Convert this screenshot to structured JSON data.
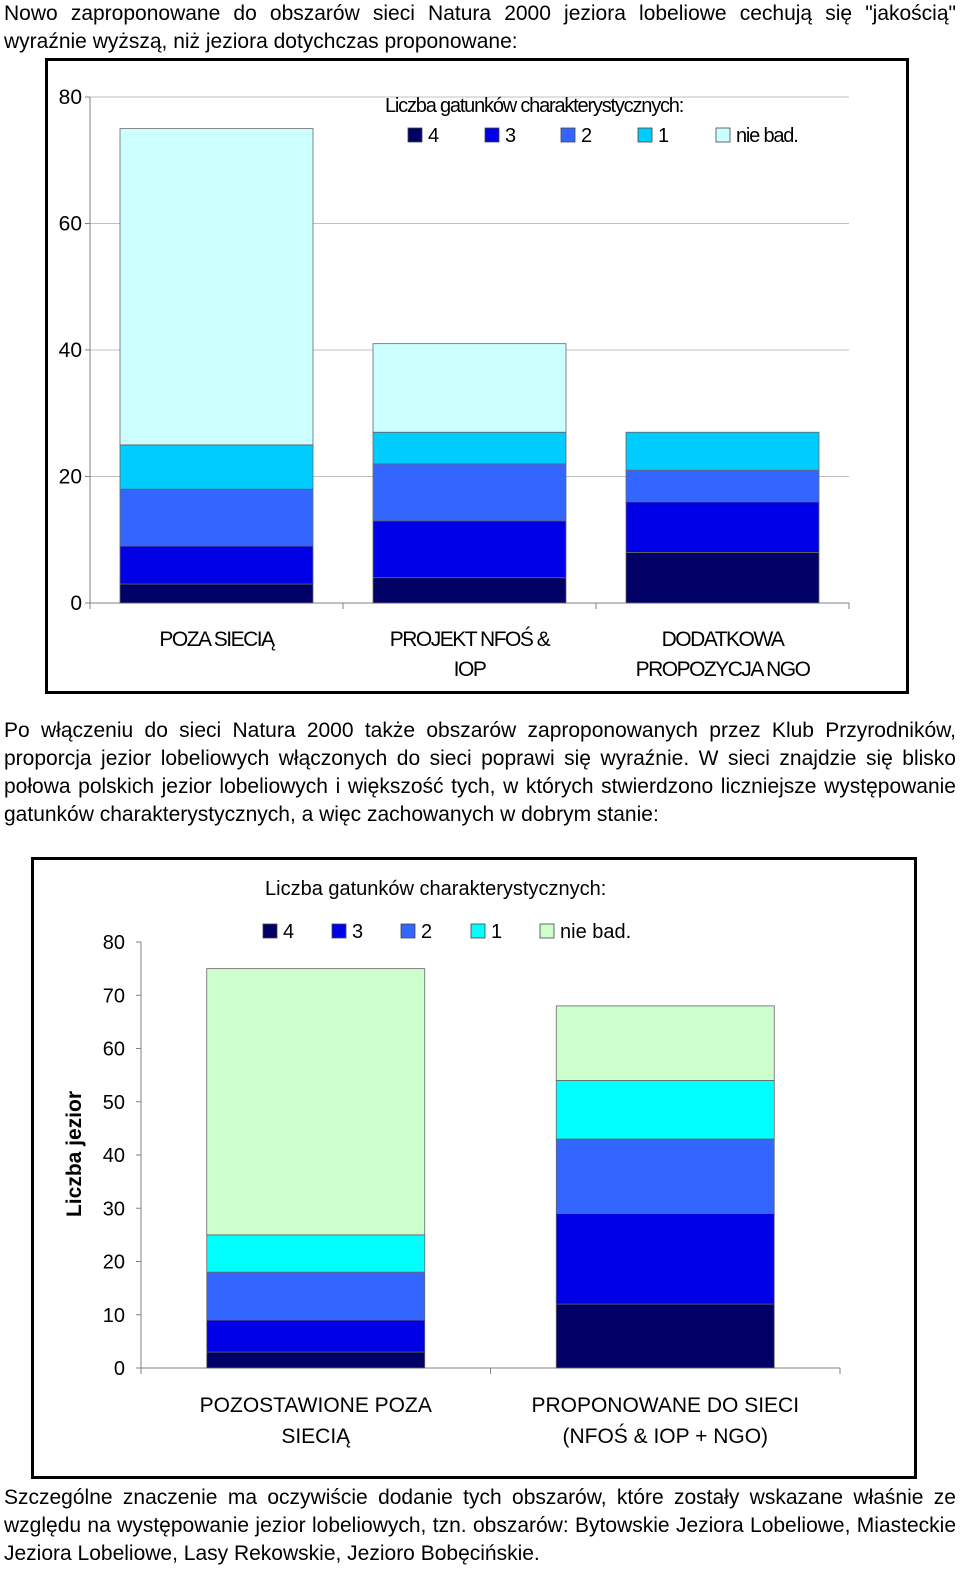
{
  "paragraphs": {
    "intro": "Nowo zaproponowane do obszarów sieci Natura 2000 jeziora lobeliowe cechują się \"jakością\" wyraźnie wyższą, niż jeziora dotychczas proponowane:",
    "middle": "Po włączeniu do sieci Natura 2000 także obszarów zaproponowanych przez Klub Przyrodników, proporcja jezior lobeliowych włączonych do sieci poprawi się wyraźnie. W sieci znajdzie się blisko połowa polskich jezior lobeliowych i większość tych, w których stwierdzono liczniejsze występowanie gatunków charakterystycznych, a więc zachowanych w dobrym stanie:",
    "closing": "Szczególne znaczenie ma oczywiście dodanie tych obszarów, które zostały wskazane właśnie ze względu na występowanie jezior lobeliowych, tzn. obszarów: Bytowskie Jeziora Lobeliowe, Miasteckie Jeziora Lobeliowe, Lasy Rekowskie, Jezioro Bobęcińskie."
  },
  "chart_data": [
    {
      "type": "bar",
      "stacked": true,
      "legend_title": "Liczba gatunków charakterystycznych:",
      "legend_position": "top",
      "categories": [
        [
          "POZA SIECIĄ"
        ],
        [
          "PROJEKT NFOŚ &",
          "IOP"
        ],
        [
          "DODATKOWA",
          "PROPOZYCJA NGO"
        ]
      ],
      "series": [
        {
          "name": "4",
          "color": "#000066",
          "values": [
            3,
            4,
            8
          ]
        },
        {
          "name": "3",
          "color": "#0000e6",
          "values": [
            6,
            9,
            8
          ]
        },
        {
          "name": "2",
          "color": "#3366ff",
          "values": [
            9,
            9,
            5
          ]
        },
        {
          "name": "1",
          "color": "#00ccff",
          "values": [
            7,
            5,
            6
          ]
        },
        {
          "name": "nie bad.",
          "color": "#ccffff",
          "values": [
            50,
            14,
            0
          ]
        }
      ],
      "y_ticks": [
        0,
        20,
        40,
        60,
        80
      ],
      "ylim": [
        0,
        80
      ],
      "ylabel": "",
      "grid": true
    },
    {
      "type": "bar",
      "stacked": true,
      "legend_title": "Liczba gatunków charakterystycznych:",
      "legend_position": "top",
      "categories": [
        [
          "POZOSTAWIONE POZA",
          "SIECIĄ"
        ],
        [
          "PROPONOWANE DO SIECI",
          "(NFOŚ & IOP + NGO)"
        ]
      ],
      "series": [
        {
          "name": "4",
          "color": "#000066",
          "values": [
            3,
            12
          ]
        },
        {
          "name": "3",
          "color": "#0000e6",
          "values": [
            6,
            17
          ]
        },
        {
          "name": "2",
          "color": "#3366ff",
          "values": [
            9,
            14
          ]
        },
        {
          "name": "1",
          "color": "#00ffff",
          "values": [
            7,
            11
          ]
        },
        {
          "name": "nie bad.",
          "color": "#ccffcc",
          "values": [
            50,
            14
          ]
        }
      ],
      "y_ticks": [
        0,
        10,
        20,
        30,
        40,
        50,
        60,
        70,
        80
      ],
      "ylim": [
        0,
        80
      ],
      "ylabel": "Liczba jezior",
      "grid": false
    }
  ]
}
